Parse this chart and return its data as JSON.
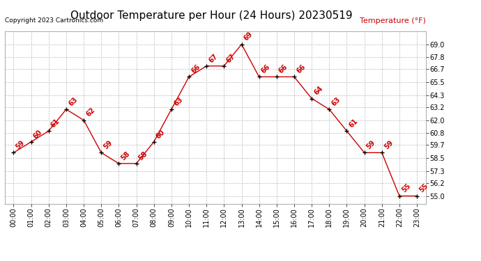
{
  "title": "Outdoor Temperature per Hour (24 Hours) 20230519",
  "copyright": "Copyright 2023 Cartronics.com",
  "legend_label": "Temperature (°F)",
  "hours": [
    "00:00",
    "01:00",
    "02:00",
    "03:00",
    "04:00",
    "05:00",
    "06:00",
    "07:00",
    "08:00",
    "09:00",
    "10:00",
    "11:00",
    "12:00",
    "13:00",
    "14:00",
    "15:00",
    "16:00",
    "17:00",
    "18:00",
    "19:00",
    "20:00",
    "21:00",
    "22:00",
    "23:00"
  ],
  "temps": [
    59,
    60,
    61,
    63,
    62,
    59,
    58,
    58,
    60,
    63,
    66,
    67,
    67,
    69,
    66,
    66,
    66,
    64,
    63,
    61,
    59,
    59,
    55,
    55
  ],
  "line_color": "#cc0000",
  "marker_color": "#000000",
  "label_color": "#cc0000",
  "bg_color": "#ffffff",
  "grid_color": "#bbbbbb",
  "yticks": [
    55.0,
    56.2,
    57.3,
    58.5,
    59.7,
    60.8,
    62.0,
    63.2,
    64.3,
    65.5,
    66.7,
    67.8,
    69.0
  ],
  "ylim": [
    54.3,
    70.2
  ],
  "title_fontsize": 11,
  "label_fontsize": 7,
  "axis_fontsize": 7,
  "copyright_fontsize": 6.5,
  "legend_fontsize": 8
}
